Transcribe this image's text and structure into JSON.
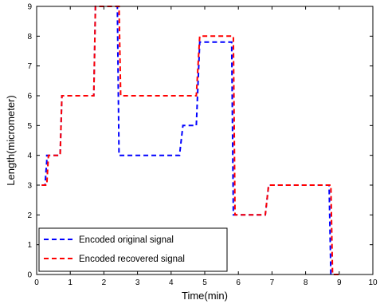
{
  "chart_data": {
    "type": "line",
    "xlabel": "Time(min)",
    "ylabel": "Length(micrometer)",
    "xlim": [
      0,
      10
    ],
    "ylim": [
      0,
      9
    ],
    "xticks": [
      0,
      1,
      2,
      3,
      4,
      5,
      6,
      7,
      8,
      9,
      10
    ],
    "yticks": [
      0,
      1,
      2,
      3,
      4,
      5,
      6,
      7,
      8,
      9
    ],
    "grid": false,
    "legend_position": "bottom-left",
    "series": [
      {
        "name": "Encoded original signal",
        "color": "#0000ff",
        "style": "dashed",
        "x": [
          0.15,
          0.25,
          0.3,
          0.3,
          0.7,
          0.75,
          1.7,
          1.75,
          2.4,
          2.45,
          4.25,
          4.35,
          4.75,
          4.85,
          5.8,
          5.85,
          6.8,
          6.9,
          8.7,
          8.75,
          9.0
        ],
        "y": [
          3,
          3,
          3.8,
          4,
          4,
          6,
          6,
          9,
          9,
          4,
          4,
          5,
          5,
          7.8,
          7.8,
          2,
          2,
          3,
          3,
          0,
          0
        ]
      },
      {
        "name": "Encoded recovered signal",
        "color": "#ff0000",
        "style": "dashed",
        "x": [
          0.15,
          0.3,
          0.35,
          0.7,
          0.75,
          1.7,
          1.75,
          2.45,
          2.5,
          4.75,
          4.85,
          5.85,
          5.9,
          6.8,
          6.9,
          8.75,
          8.8,
          9.0
        ],
        "y": [
          3,
          3,
          4,
          4,
          6,
          6,
          9,
          9,
          6,
          6,
          8,
          8,
          2,
          2,
          3,
          3,
          0,
          0
        ]
      }
    ]
  }
}
